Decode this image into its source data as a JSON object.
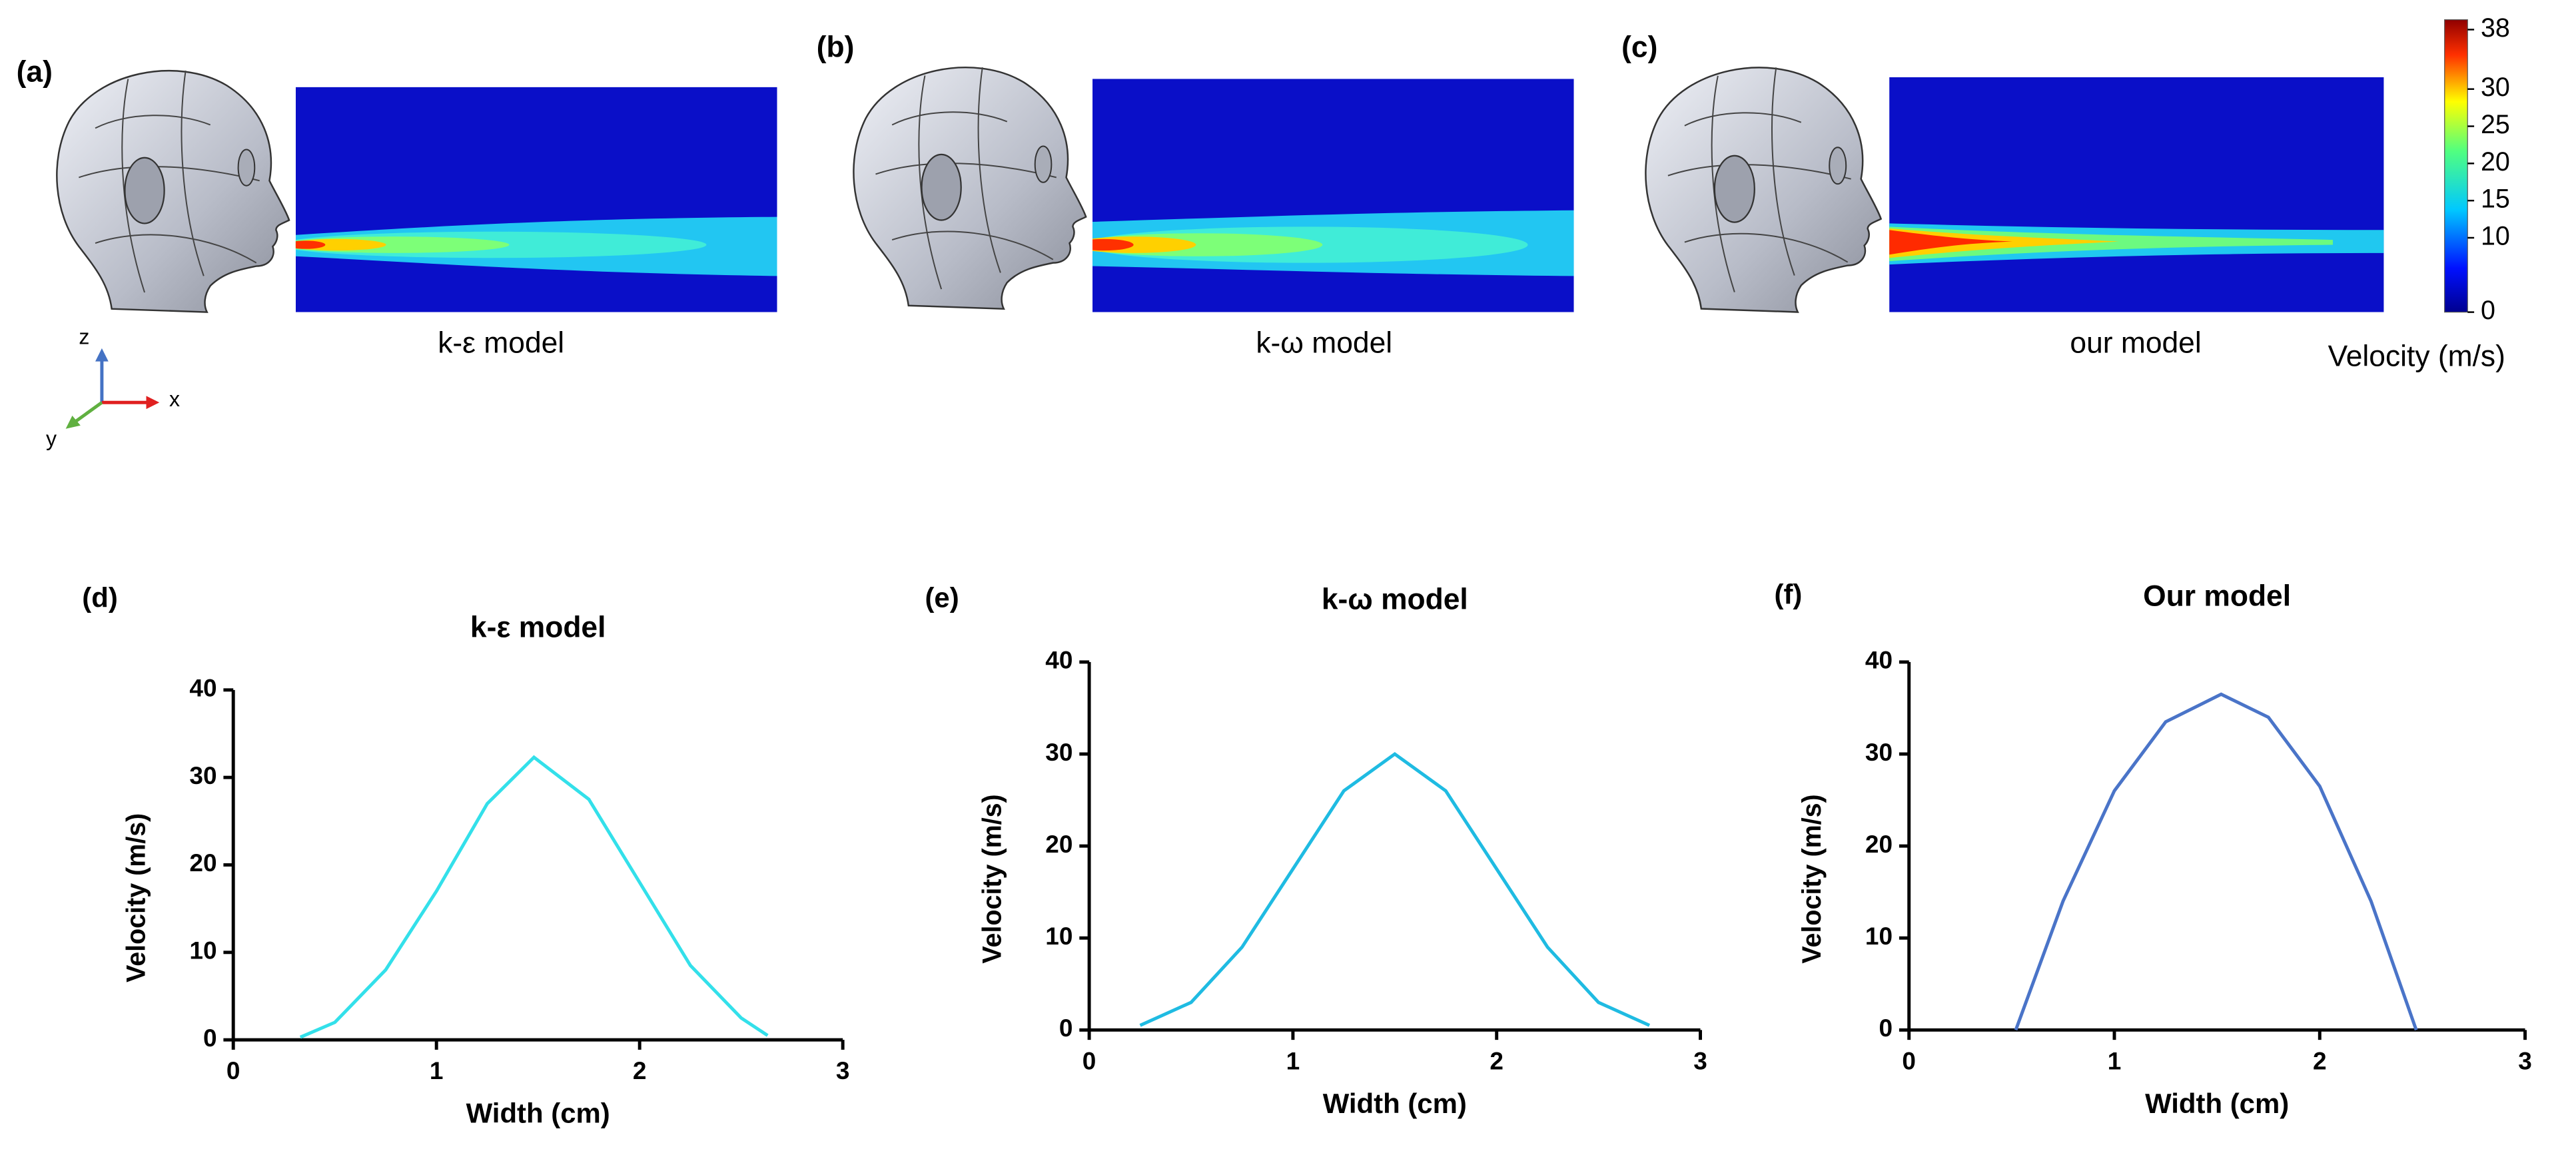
{
  "panels": [
    {
      "label": "(a)",
      "caption": "k-ε model"
    },
    {
      "label": "(b)",
      "caption": "k-ω model"
    },
    {
      "label": "(c)",
      "caption": "our model"
    }
  ],
  "axes_triad": {
    "z": "z",
    "x": "x",
    "y": "y"
  },
  "colorbar": {
    "title": "Velocity (m/s)",
    "lim": [
      0,
      38
    ],
    "ticks": [
      0,
      10,
      15,
      20,
      25,
      30,
      38
    ]
  },
  "chart_data": [
    {
      "type": "line",
      "panel_label": "(d)",
      "title": "k-ε model",
      "x_label": "Width (cm)",
      "y_label": "Velocity (m/s)",
      "x": [
        0.33,
        0.5,
        0.75,
        1.0,
        1.25,
        1.48,
        1.75,
        2.0,
        2.25,
        2.5,
        2.63
      ],
      "values": [
        0.3,
        2,
        8,
        17,
        27,
        32.3,
        27.5,
        18,
        8.5,
        2.5,
        0.5
      ],
      "color": "#33e0ea",
      "xlim": [
        0,
        3
      ],
      "xticks": [
        0,
        1,
        2,
        3
      ],
      "ylim": [
        0,
        40
      ],
      "yticks": [
        0,
        10,
        20,
        30,
        40
      ]
    },
    {
      "type": "line",
      "panel_label": "(e)",
      "title": "k-ω model",
      "x_label": "Width (cm)",
      "y_label": "Velocity (m/s)",
      "x": [
        0.25,
        0.5,
        0.75,
        1.0,
        1.25,
        1.5,
        1.75,
        2.0,
        2.25,
        2.5,
        2.75
      ],
      "values": [
        0.5,
        3,
        9,
        17.5,
        26,
        30,
        26,
        17.5,
        9,
        3,
        0.5
      ],
      "color": "#1fbbe2",
      "xlim": [
        0,
        3
      ],
      "xticks": [
        0,
        1,
        2,
        3
      ],
      "ylim": [
        0,
        40
      ],
      "yticks": [
        0,
        10,
        20,
        30,
        40
      ]
    },
    {
      "type": "line",
      "panel_label": "(f)",
      "title": "Our model",
      "x_label": "Width (cm)",
      "y_label": "Velocity (m/s)",
      "x": [
        0.52,
        0.75,
        1.0,
        1.25,
        1.52,
        1.75,
        2.0,
        2.25,
        2.47
      ],
      "values": [
        0,
        14,
        26,
        33.5,
        36.5,
        34,
        26.5,
        14,
        0
      ],
      "color": "#4a74c8",
      "xlim": [
        0,
        3
      ],
      "xticks": [
        0,
        1,
        2,
        3
      ],
      "ylim": [
        0,
        40
      ],
      "yticks": [
        0,
        10,
        20,
        30,
        40
      ]
    }
  ]
}
